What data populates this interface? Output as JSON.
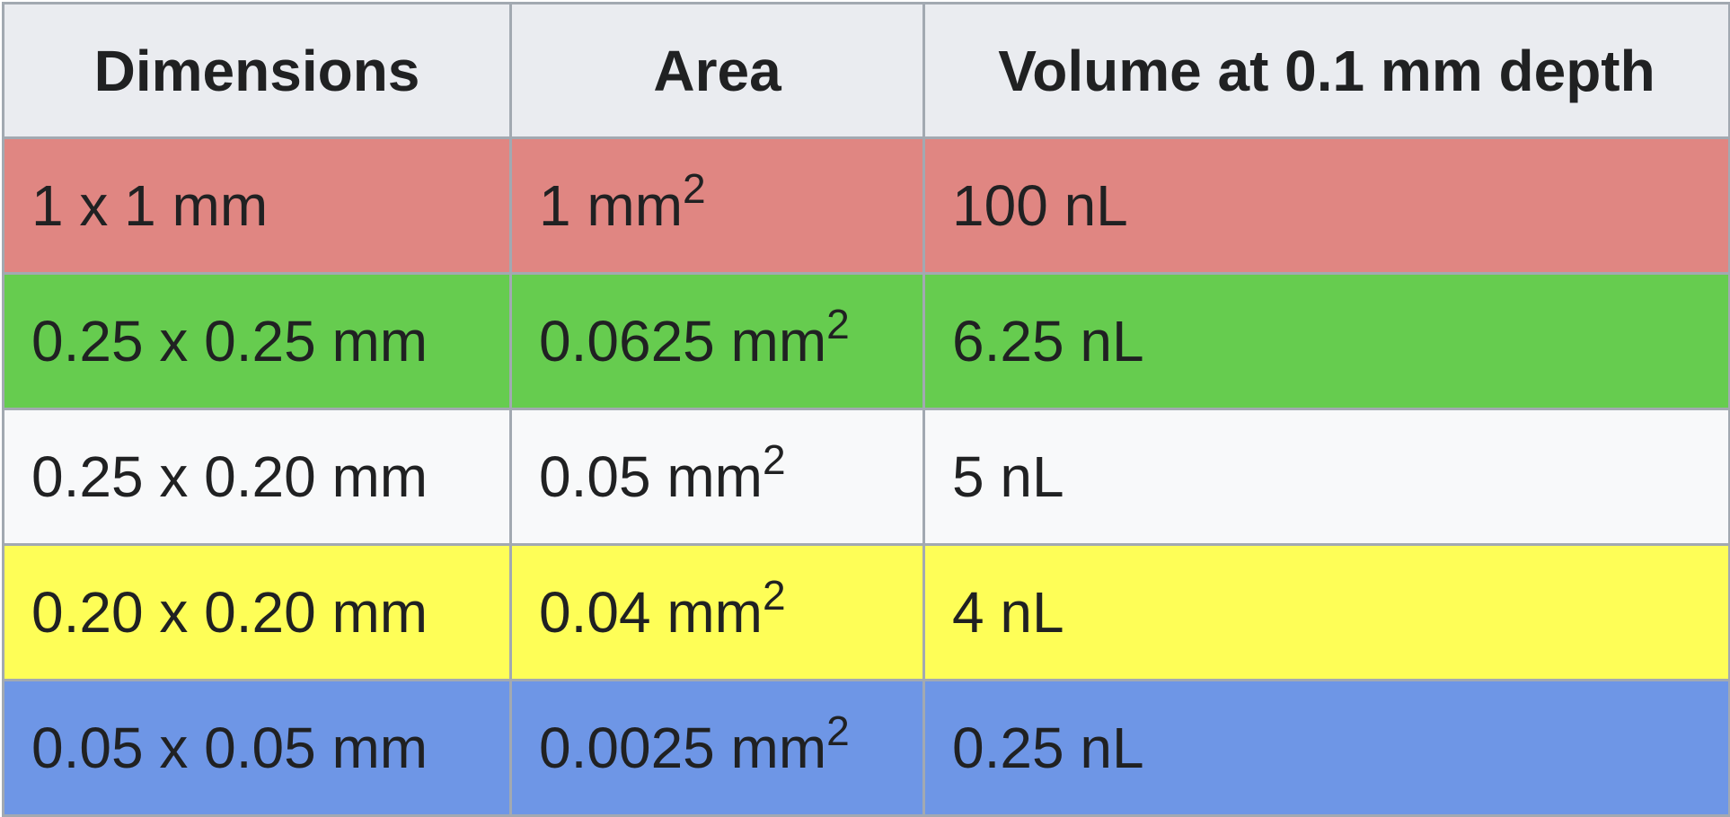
{
  "table": {
    "headers": [
      "Dimensions",
      "Area",
      "Volume at 0.1 mm depth"
    ],
    "rows": [
      {
        "color": "#e08682",
        "dimensions": "1 x 1 mm",
        "area": "1 mm",
        "area_sup": "2",
        "volume": "100 nL"
      },
      {
        "color": "#66cc4f",
        "dimensions": "0.25 x 0.25 mm",
        "area": "0.0625 mm",
        "area_sup": "2",
        "volume": "6.25 nL"
      },
      {
        "color": "#f8f9fa",
        "dimensions": "0.25 x 0.20 mm",
        "area": "0.05 mm",
        "area_sup": "2",
        "volume": "5 nL"
      },
      {
        "color": "#fefe57",
        "dimensions": "0.20 x 0.20 mm",
        "area": "0.04 mm",
        "area_sup": "2",
        "volume": "4 nL"
      },
      {
        "color": "#6e96e6",
        "dimensions": "0.05 x 0.05 mm",
        "area": "0.0025 mm",
        "area_sup": "2",
        "volume": "0.25 nL"
      }
    ]
  }
}
